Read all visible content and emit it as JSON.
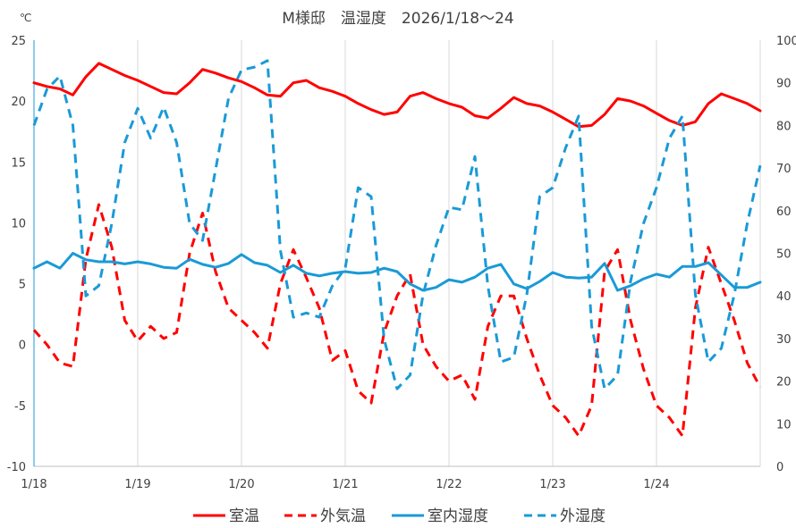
{
  "chart_data": {
    "type": "line",
    "title": "M様邸　温湿度　2026/1/18～24",
    "ylabel": "℃",
    "ylabel_right": "",
    "ylim": [
      -10,
      25
    ],
    "ylim_right": [
      0,
      100
    ],
    "yticks": [
      "25",
      "20",
      "15",
      "10",
      "5",
      "0",
      "-5",
      "-10"
    ],
    "yticks_right": [
      "100",
      "90",
      "80",
      "70",
      "60",
      "50",
      "40",
      "30",
      "20",
      "10",
      "0"
    ],
    "xlim_days": [
      0,
      7
    ],
    "xticks": [
      "1/18",
      "1/19",
      "1/20",
      "1/21",
      "1/22",
      "1/23",
      "1/24"
    ],
    "x_step_hours": 3,
    "legend_position": "bottom",
    "grid": "vertical",
    "series": [
      {
        "name": "室温",
        "axis": "left",
        "color": "#ff0000",
        "dash": false,
        "values": [
          21.5,
          21.2,
          21.0,
          20.5,
          22.0,
          23.1,
          22.6,
          22.1,
          21.7,
          21.2,
          20.7,
          20.6,
          21.5,
          22.6,
          22.3,
          21.9,
          21.6,
          21.1,
          20.5,
          20.4,
          21.5,
          21.7,
          21.1,
          20.8,
          20.4,
          19.8,
          19.3,
          18.9,
          19.1,
          20.4,
          20.7,
          20.2,
          19.8,
          19.5,
          18.8,
          18.6,
          19.4,
          20.3,
          19.8,
          19.6,
          19.1,
          18.5,
          17.9,
          18.0,
          18.9,
          20.2,
          20.0,
          19.6,
          19.0,
          18.4,
          18.0,
          18.3,
          19.8,
          20.6,
          20.2,
          19.8,
          19.2
        ]
      },
      {
        "name": "外気温",
        "axis": "left",
        "color": "#ff0000",
        "dash": true,
        "values": [
          1.2,
          0,
          -1.5,
          -1.8,
          7,
          11.5,
          8,
          2,
          0.3,
          1.5,
          0.5,
          1,
          7.5,
          10.8,
          6,
          3,
          2,
          1,
          -0.3,
          5,
          7.8,
          5.5,
          3,
          -1.3,
          -0.5,
          -3.8,
          -4.8,
          1,
          4,
          5.8,
          0,
          -1.8,
          -3,
          -2.5,
          -4.5,
          1.5,
          4,
          4,
          0.5,
          -2.5,
          -5,
          -6,
          -7.5,
          -5,
          6,
          7.8,
          2,
          -2,
          -5,
          -6,
          -7.5,
          3,
          8,
          5,
          2,
          -1.5,
          -3.5
        ]
      },
      {
        "name": "室内湿度",
        "axis": "right",
        "color": "#1a9ad6",
        "dash": false,
        "values": [
          46.5,
          48,
          46.5,
          50,
          48.5,
          48,
          48,
          47.5,
          48,
          47.5,
          46.7,
          46.5,
          48.6,
          47.4,
          46.7,
          47.6,
          49.7,
          47.8,
          47.2,
          45.5,
          47.2,
          45.3,
          44.7,
          45.3,
          45.7,
          45.3,
          45.5,
          46.5,
          45.7,
          42.8,
          41.3,
          42,
          43.8,
          43.2,
          44.4,
          46.5,
          47.4,
          42.8,
          41.7,
          43.4,
          45.5,
          44.4,
          44.2,
          44.4,
          47.6,
          41.3,
          42.4,
          44,
          45.1,
          44.4,
          46.9,
          46.9,
          47.8,
          44.9,
          42,
          42,
          43.2
        ]
      },
      {
        "name": "外湿度",
        "axis": "right",
        "color": "#1a9ad6",
        "dash": true,
        "values": [
          80,
          88.5,
          91.6,
          80,
          40,
          42.4,
          57,
          76,
          84,
          77,
          84.3,
          76,
          57,
          53,
          69.6,
          86.4,
          93,
          93.7,
          95.2,
          50.7,
          35,
          36,
          35,
          42.3,
          46.5,
          65.4,
          63.3,
          29.8,
          18.2,
          21.4,
          40.3,
          51.8,
          60.8,
          60.2,
          72.7,
          42.3,
          24.5,
          25.6,
          40.3,
          63.3,
          65.4,
          74.8,
          82.2,
          32.9,
          18.2,
          21.4,
          43.4,
          57,
          65.4,
          77,
          82.2,
          40.3,
          24.5,
          27.7,
          40.3,
          57,
          70.6
        ]
      }
    ]
  }
}
